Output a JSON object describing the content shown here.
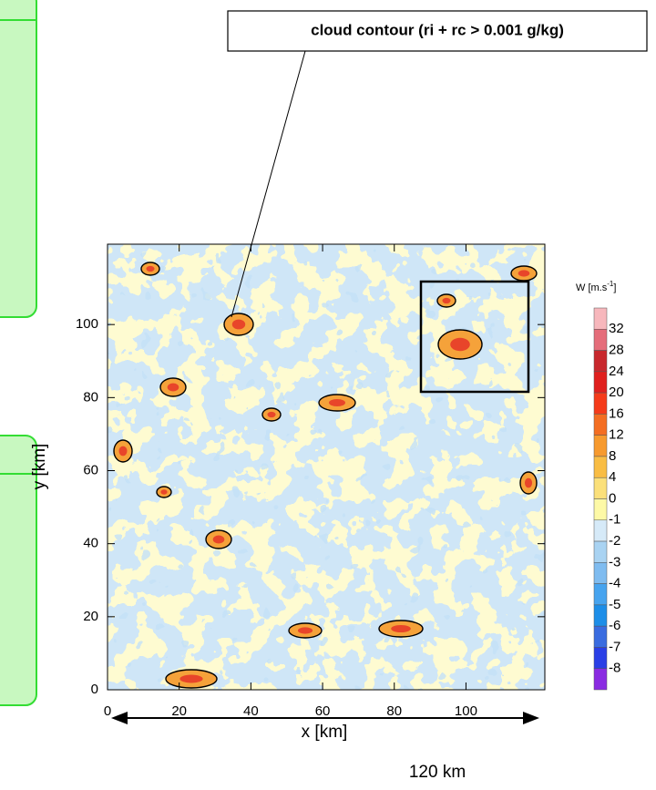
{
  "chart_data": {
    "type": "field",
    "annotation": "cloud contour (ri + rc > 0.001 g/kg)",
    "x_label": "x [km]",
    "y_label": "y [km]",
    "xlim": [
      0,
      122
    ],
    "ylim": [
      0,
      122
    ],
    "xticks": [
      0,
      20,
      40,
      60,
      80,
      100
    ],
    "yticks": [
      0,
      20,
      40,
      60,
      80,
      100
    ],
    "domain_label": "120 km",
    "colorbar": {
      "units": {
        "base": "W [m.s",
        "sup": "-1",
        "end": "]"
      },
      "levels": [
        32,
        28,
        24,
        20,
        16,
        12,
        8,
        4,
        0,
        -1,
        -2,
        -3,
        -4,
        -5,
        -6,
        -7,
        -8
      ],
      "colors": [
        "#f7b7bc",
        "#e56d7a",
        "#c8282d",
        "#e0201e",
        "#f53b1a",
        "#f46e22",
        "#f79a2e",
        "#f9bd44",
        "#fbe07a",
        "#fdf9a6",
        "#d6eaf8",
        "#a9d3f2",
        "#7fbcf0",
        "#47a4ef",
        "#1d8ee8",
        "#3a6ce0",
        "#2a3fe6",
        "#8a2be2"
      ]
    }
  }
}
